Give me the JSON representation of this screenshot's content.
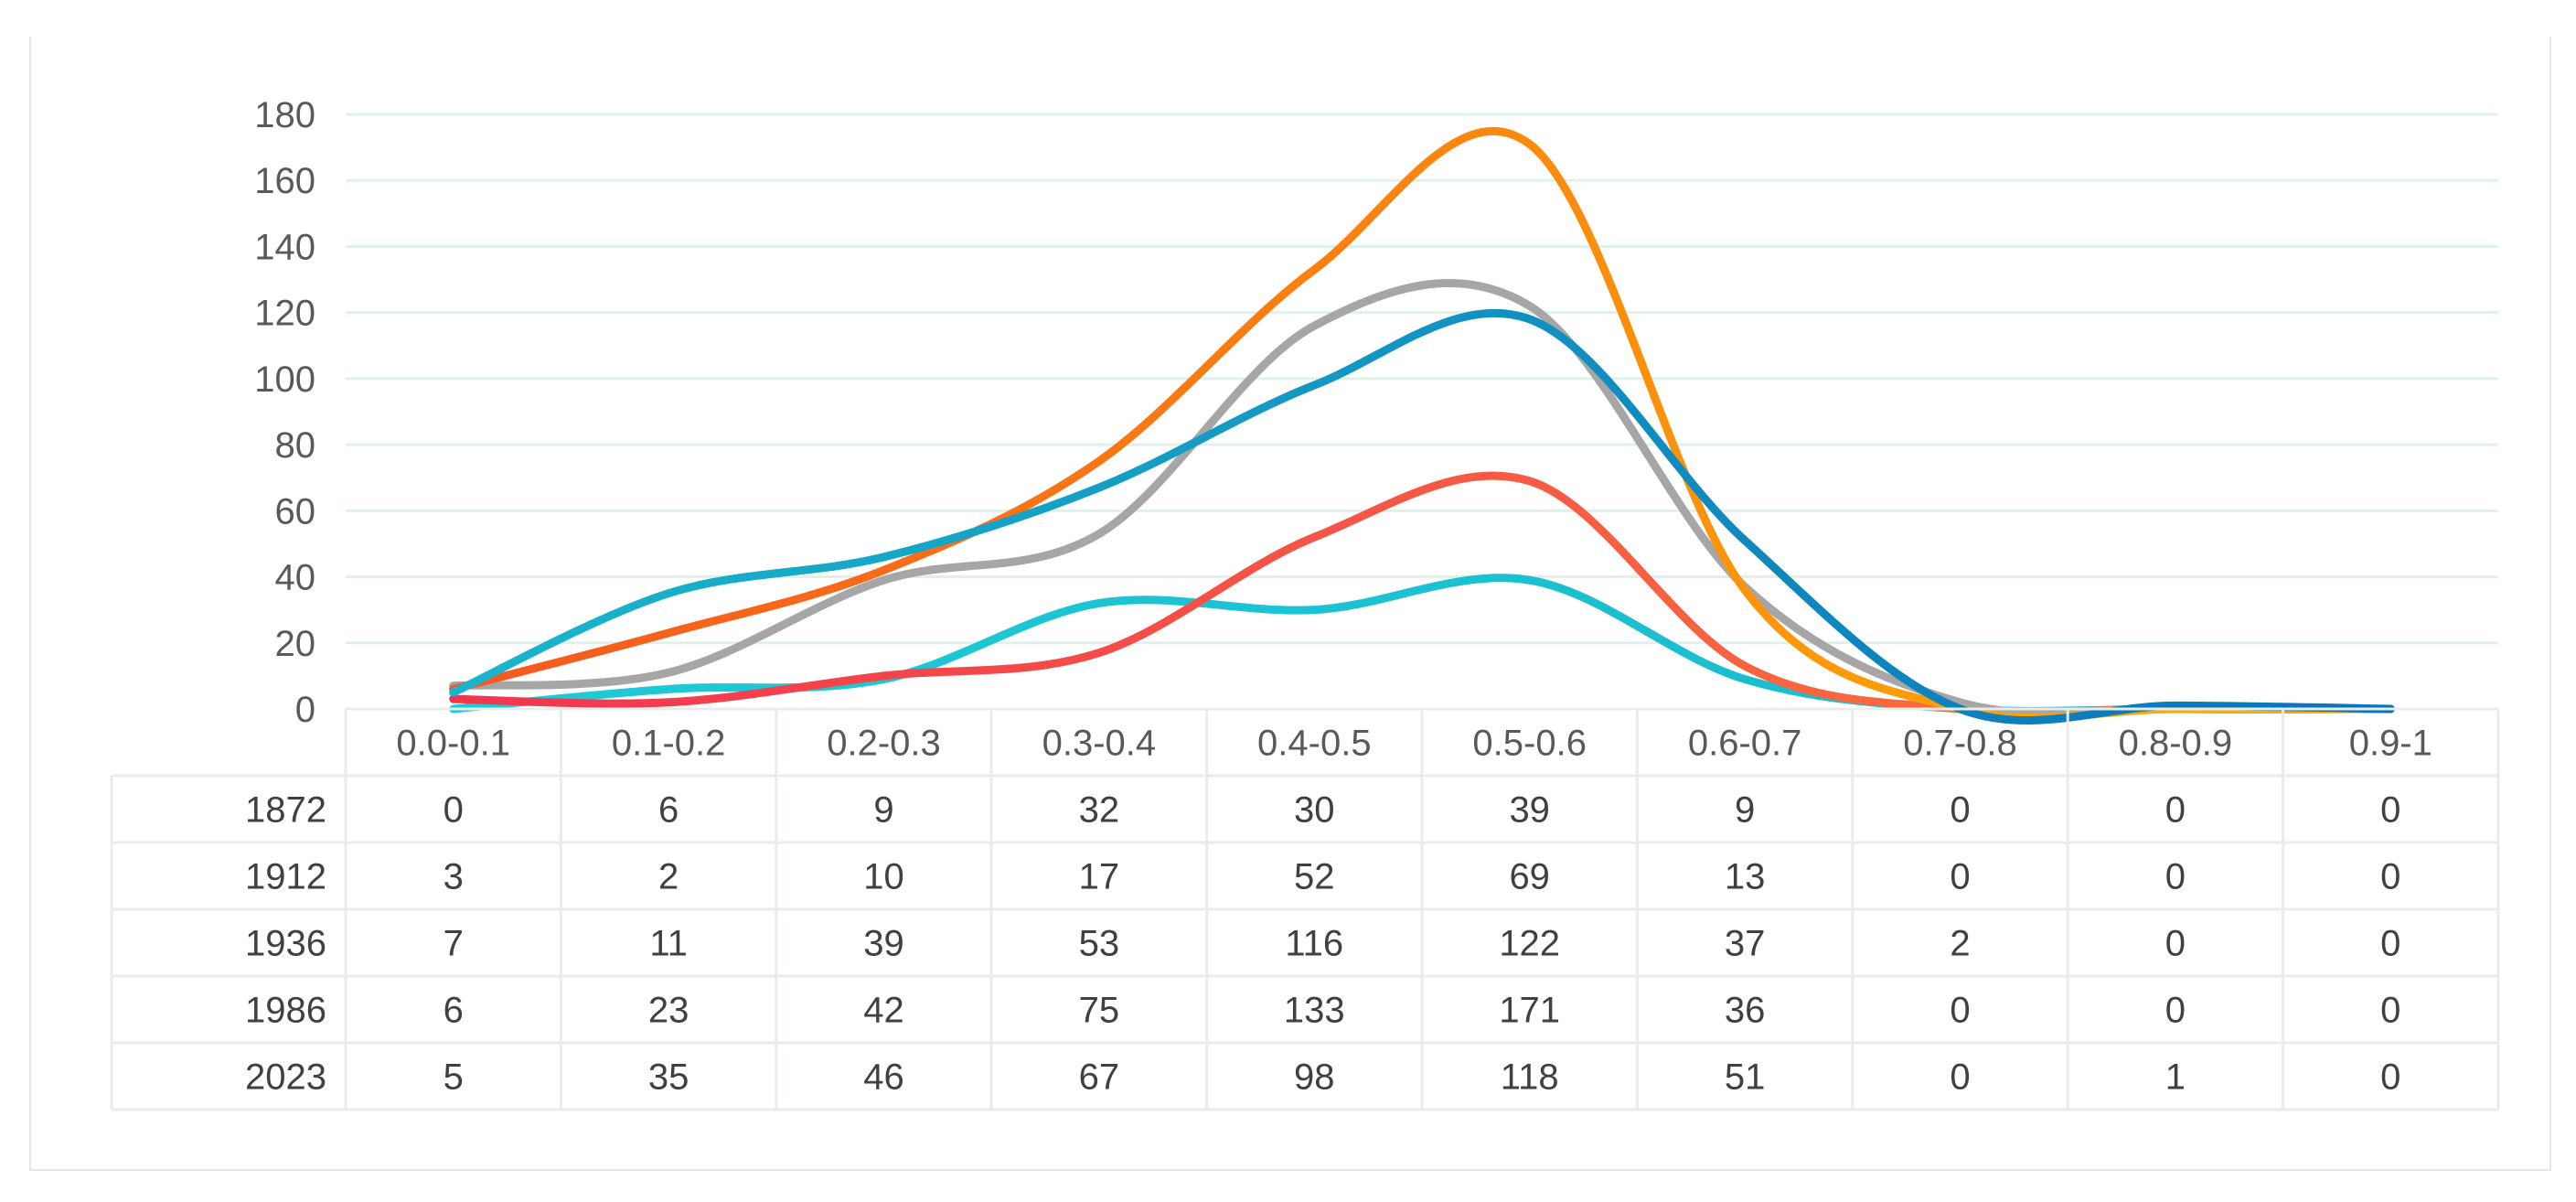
{
  "chart_data": {
    "type": "line",
    "smooth": true,
    "title": "",
    "xlabel": "",
    "ylabel": "",
    "ylim": [
      0,
      180
    ],
    "ytick_step": 20,
    "yticks": [
      "0",
      "20",
      "40",
      "60",
      "80",
      "100",
      "120",
      "140",
      "160",
      "180"
    ],
    "grid": true,
    "legend": "data-table",
    "categories": [
      "0.0-0.1",
      "0.1-0.2",
      "0.2-0.3",
      "0.3-0.4",
      "0.4-0.5",
      "0.5-0.6",
      "0.6-0.7",
      "0.7-0.8",
      "0.8-0.9",
      "0.9-1"
    ],
    "series": [
      {
        "name": "1872",
        "color": "#1ecbd6",
        "color2": "#19b8cc",
        "values": [
          0,
          6,
          9,
          32,
          30,
          39,
          9,
          0,
          0,
          0
        ]
      },
      {
        "name": "1912",
        "color": "#f0364f",
        "color2": "#fb7a3a",
        "values": [
          3,
          2,
          10,
          17,
          52,
          69,
          13,
          0,
          0,
          0
        ]
      },
      {
        "name": "1936",
        "color": "#a6a6a6",
        "color2": "#a6a6a6",
        "values": [
          7,
          11,
          39,
          53,
          116,
          122,
          37,
          2,
          0,
          0
        ]
      },
      {
        "name": "1986",
        "color": "#f5581f",
        "color2": "#ffb300",
        "values": [
          6,
          23,
          42,
          75,
          133,
          171,
          36,
          0,
          0,
          0
        ]
      },
      {
        "name": "2023",
        "color": "#1ab5cc",
        "color2": "#0a73b8",
        "values": [
          5,
          35,
          46,
          67,
          98,
          118,
          51,
          0,
          1,
          0
        ]
      }
    ]
  }
}
